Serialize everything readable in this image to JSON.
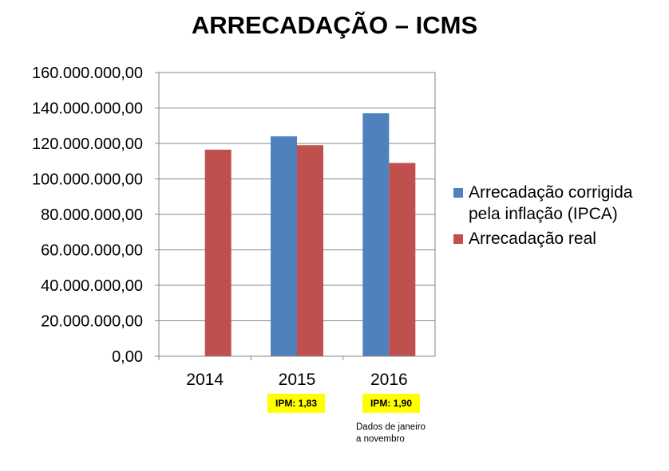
{
  "chart_data": {
    "type": "bar",
    "title": "ARRECADAÇÃO – ICMS",
    "categories": [
      "2014",
      "2015",
      "2016"
    ],
    "series": [
      {
        "name": "Arrecadação corrigida pela inflação (IPCA)",
        "color": "#4f81bd",
        "values": [
          null,
          124000000,
          137000000
        ]
      },
      {
        "name": "Arrecadação real",
        "color": "#c0504d",
        "values": [
          116500000,
          119000000,
          109000000
        ]
      }
    ],
    "yticks": [
      "0,00",
      "20.000.000,00",
      "40.000.000,00",
      "60.000.000,00",
      "80.000.000,00",
      "100.000.000,00",
      "120.000.000,00",
      "140.000.000,00",
      "160.000.000,00"
    ],
    "ylim": [
      0,
      160000000
    ],
    "grid": true,
    "legend_position": "right",
    "annotations": {
      "ipm_2015": "IPM: 1,83",
      "ipm_2016": "IPM: 1,90",
      "note_2016": "Dados de janeiro a novembro"
    }
  }
}
